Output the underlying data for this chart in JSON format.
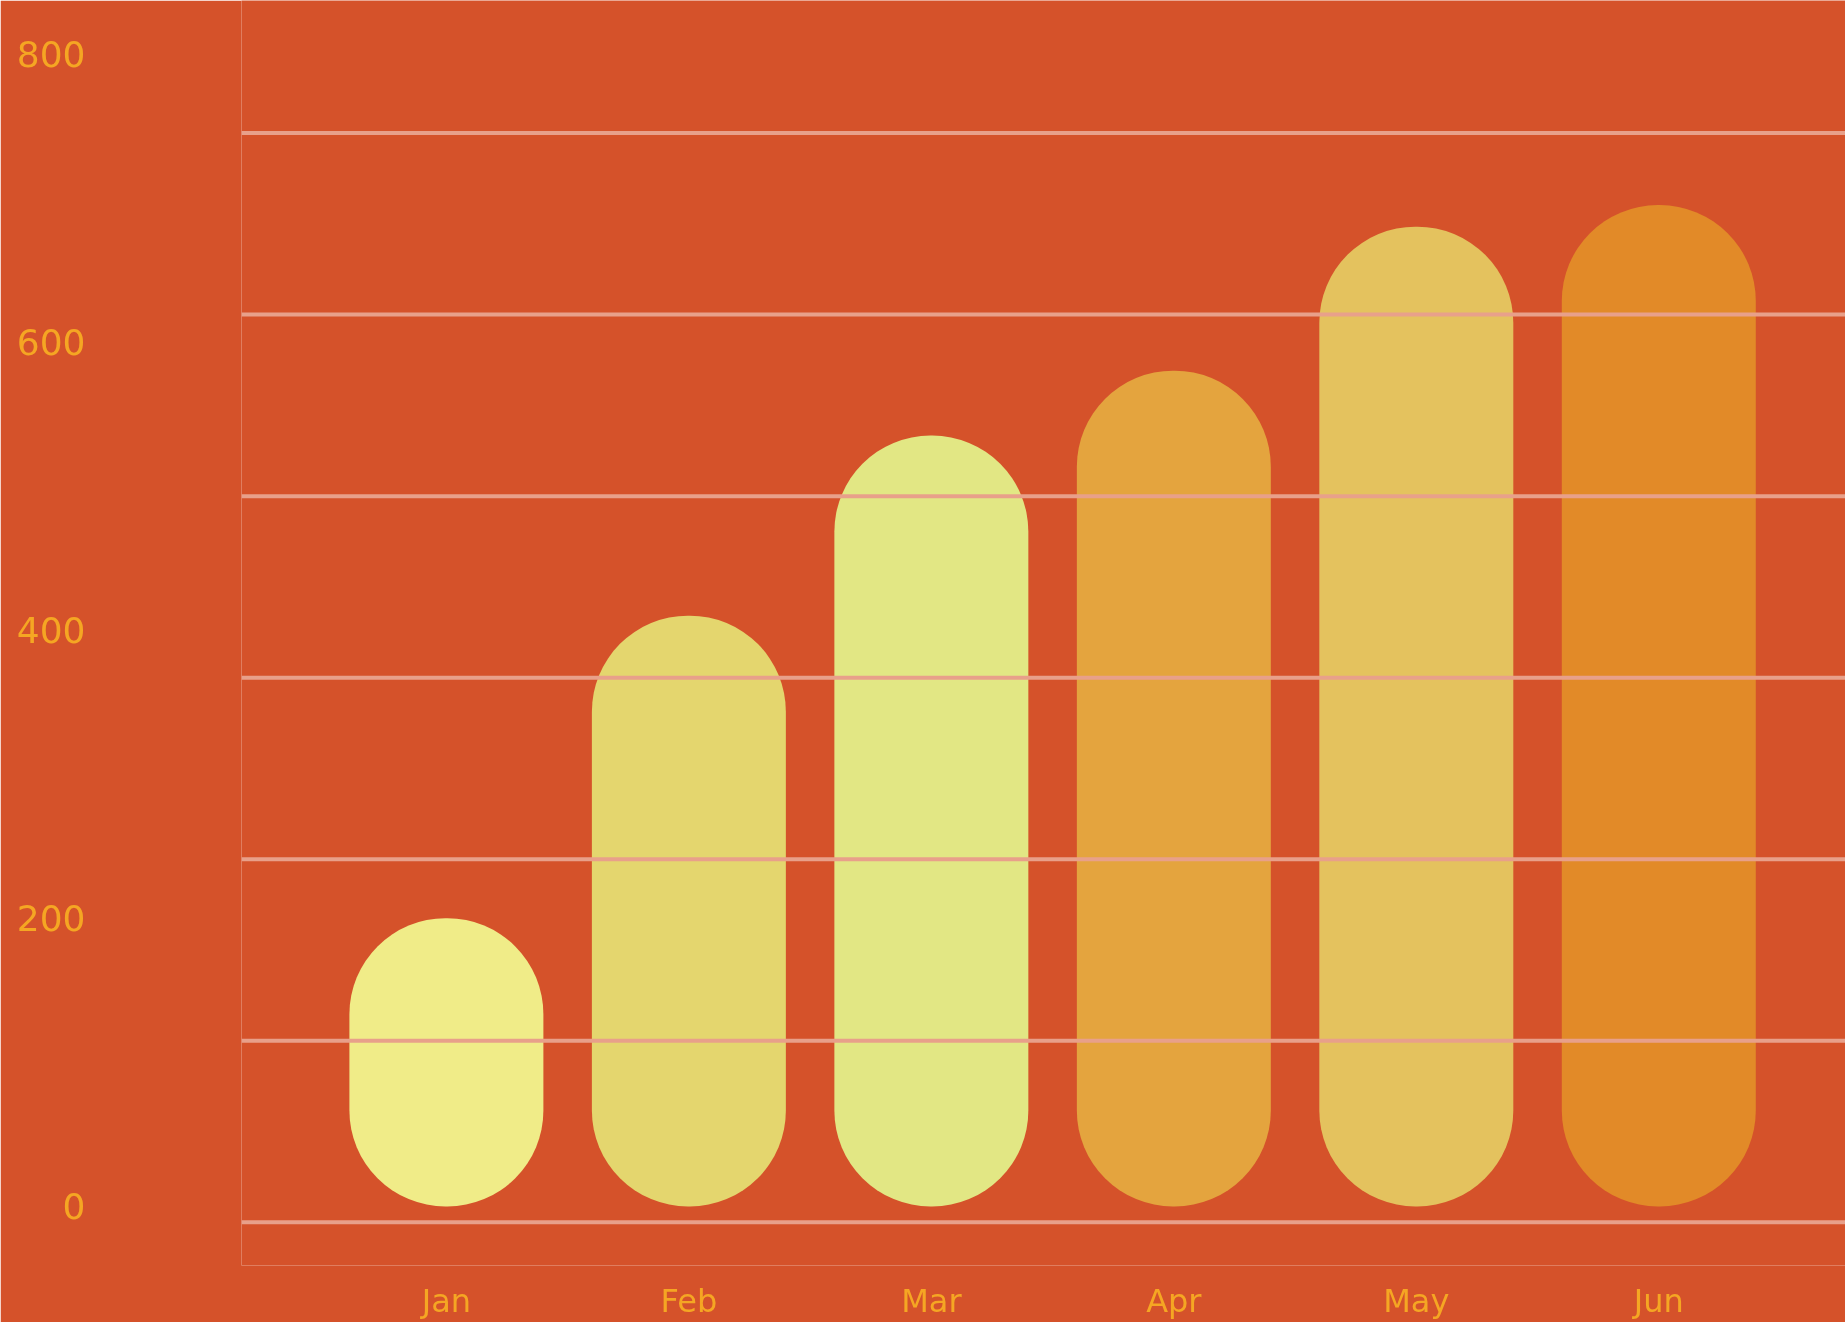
{
  "chart_data": {
    "type": "bar",
    "categories": [
      "Jan",
      "Feb",
      "Mar",
      "Apr",
      "May",
      "Jun"
    ],
    "values": [
      200,
      410,
      535,
      580,
      680,
      695
    ],
    "colors": [
      "#f0ec88",
      "#e4d66e",
      "#e2e784",
      "#e4a43e",
      "#e4c25e",
      "#e28a28"
    ],
    "ylim": [
      -41,
      837
    ],
    "yticks": [
      0,
      200,
      400,
      600,
      800
    ],
    "grid": false,
    "ref_lines": [
      {
        "axis": "y",
        "value": -11,
        "label": null,
        "color": "#e8a08a"
      },
      {
        "axis": "y",
        "value": 115,
        "label": null,
        "color": "#e8a08a"
      },
      {
        "axis": "y",
        "value": 241,
        "label": null,
        "color": "#e8a08a"
      },
      {
        "axis": "y",
        "value": 367,
        "label": null,
        "color": "#e8a08a"
      },
      {
        "axis": "y",
        "value": 493,
        "label": null,
        "color": "#e8a08a"
      },
      {
        "axis": "y",
        "value": 619,
        "label": null,
        "color": "#e8a08a"
      },
      {
        "axis": "y",
        "value": 745,
        "label": null,
        "color": "#e8a08a"
      }
    ]
  }
}
